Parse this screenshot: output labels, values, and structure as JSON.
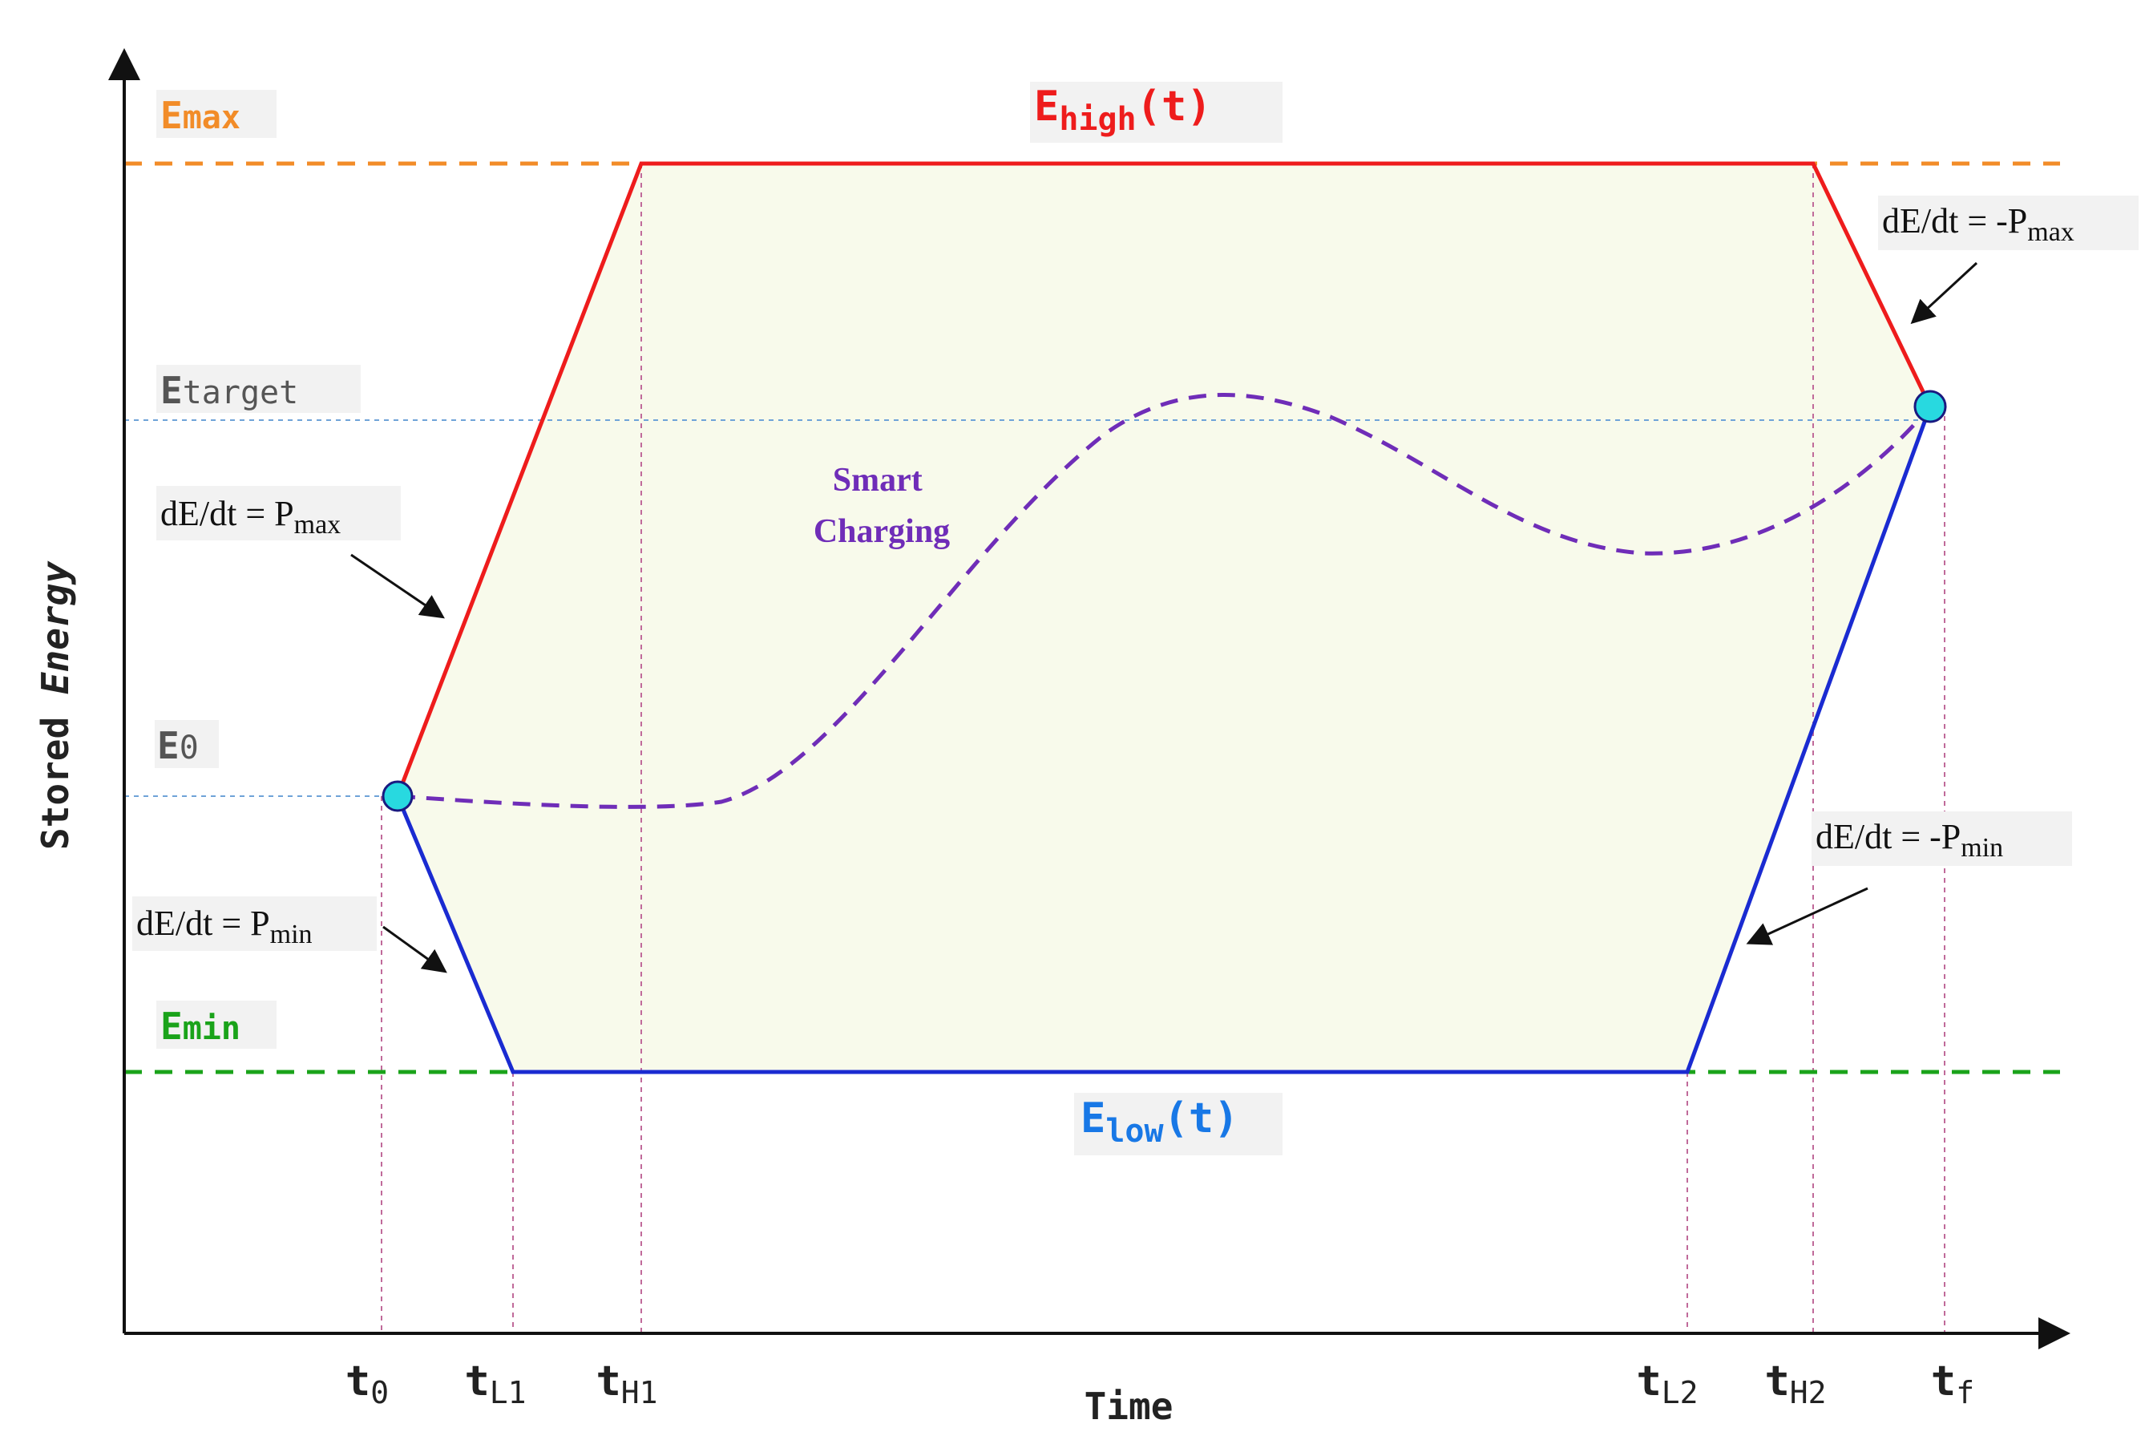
{
  "axes": {
    "x_label": "Time",
    "y_label_prefix": "Stored ",
    "y_label_italic": "Energy"
  },
  "levels": {
    "emax": {
      "base": "E",
      "rest": "max",
      "color": "#f28c28"
    },
    "emin": {
      "base": "E",
      "rest": "min",
      "color": "#1aa31a"
    },
    "etarget": {
      "base": "E",
      "rest": "target",
      "color": "#555555"
    },
    "e0": {
      "base": "E",
      "rest": "0",
      "color": "#555555"
    }
  },
  "curves": {
    "ehigh": {
      "base": "E",
      "sub": "high",
      "suffix": "(t)",
      "color": "#ee1c1c"
    },
    "elow": {
      "base": "E",
      "sub": "low",
      "suffix": "(t)",
      "color": "#1878e6"
    },
    "smart": {
      "line1": "Smart",
      "line2": "Charging",
      "color": "#6f2db8"
    }
  },
  "rates": {
    "pmax": {
      "text": "dE/dt = P",
      "sub": "max"
    },
    "pmin": {
      "text": "dE/dt = P",
      "sub": "min"
    },
    "neg_pmax": {
      "text": "dE/dt = -P",
      "sub": "max"
    },
    "neg_pmin": {
      "text": "dE/dt = -P",
      "sub": "min"
    }
  },
  "ticks": [
    {
      "base": "t",
      "sub": "0"
    },
    {
      "base": "t",
      "sub": "L1"
    },
    {
      "base": "t",
      "sub": "H1"
    },
    {
      "base": "t",
      "sub": "L2"
    },
    {
      "base": "t",
      "sub": "H2"
    },
    {
      "base": "t",
      "sub": "f"
    }
  ],
  "colors": {
    "envelope_fill": "#f8faeb",
    "lower_line": "#1a2bd1",
    "guide": "#c06a9a",
    "marker": "#28d9e0",
    "axis": "#111111"
  }
}
